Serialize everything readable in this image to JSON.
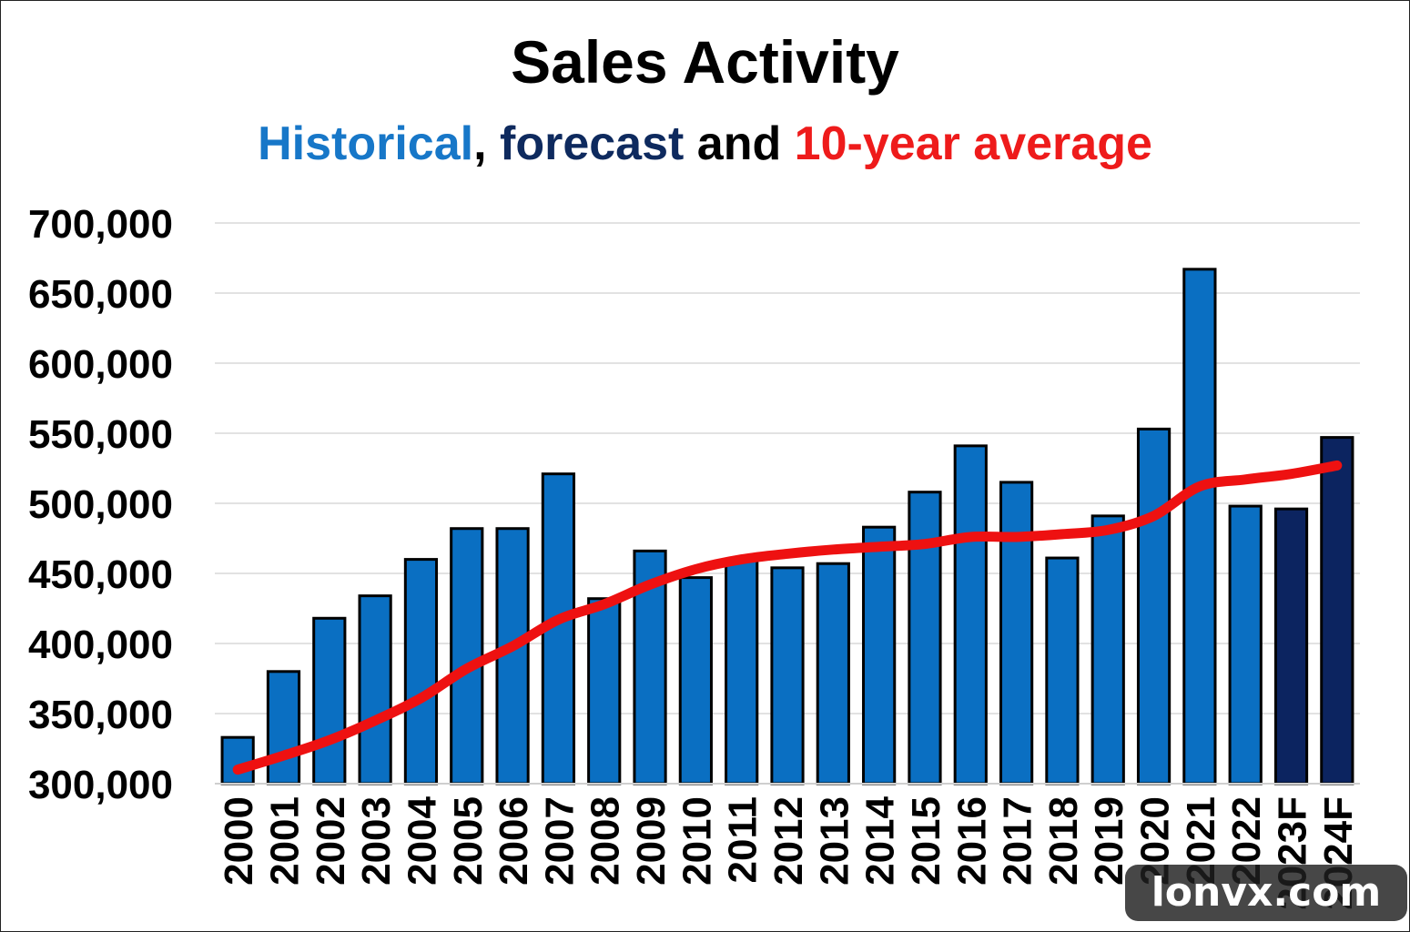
{
  "header": {
    "title": "Sales Activity",
    "subtitle_historical": "Historical",
    "subtitle_sep": ", ",
    "subtitle_forecast": "forecast",
    "subtitle_and": " and ",
    "subtitle_average": "10-year average"
  },
  "watermark": "lonvx.com",
  "colors": {
    "historical_bar": "#0a6fc2",
    "forecast_bar": "#0c2460",
    "average_line": "#ee1111",
    "grid": "#d9d9d9"
  },
  "chart_data": {
    "type": "bar",
    "title": "Sales Activity",
    "subtitle": "Historical, forecast and 10-year average",
    "xlabel": "",
    "ylabel": "",
    "ylim": [
      300000,
      700000
    ],
    "yticks": [
      300000,
      350000,
      400000,
      450000,
      500000,
      550000,
      600000,
      650000,
      700000
    ],
    "ytick_labels": [
      "300,000",
      "350,000",
      "400,000",
      "450,000",
      "500,000",
      "550,000",
      "600,000",
      "650,000",
      "700,000"
    ],
    "grid": true,
    "categories": [
      "2000",
      "2001",
      "2002",
      "2003",
      "2004",
      "2005",
      "2006",
      "2007",
      "2008",
      "2009",
      "2010",
      "2011",
      "2012",
      "2013",
      "2014",
      "2015",
      "2016",
      "2017",
      "2018",
      "2019",
      "2020",
      "2021",
      "2022",
      "2023F",
      "2024F"
    ],
    "series": [
      {
        "name": "Historical",
        "kind": "bar",
        "values": [
          333000,
          380000,
          418000,
          434000,
          460000,
          482000,
          482000,
          521000,
          432000,
          466000,
          447000,
          460000,
          454000,
          457000,
          483000,
          508000,
          541000,
          515000,
          461000,
          491000,
          553000,
          667000,
          498000,
          null,
          null
        ]
      },
      {
        "name": "forecast",
        "kind": "bar",
        "values": [
          null,
          null,
          null,
          null,
          null,
          null,
          null,
          null,
          null,
          null,
          null,
          null,
          null,
          null,
          null,
          null,
          null,
          null,
          null,
          null,
          null,
          null,
          null,
          496000,
          547000
        ]
      },
      {
        "name": "10-year average",
        "kind": "line",
        "values": [
          310000,
          320000,
          331000,
          345000,
          361000,
          382000,
          398000,
          417000,
          428000,
          442000,
          453000,
          460000,
          464000,
          467000,
          469000,
          471000,
          476000,
          476000,
          478000,
          481000,
          491000,
          512000,
          517000,
          521000,
          527000
        ]
      }
    ]
  }
}
